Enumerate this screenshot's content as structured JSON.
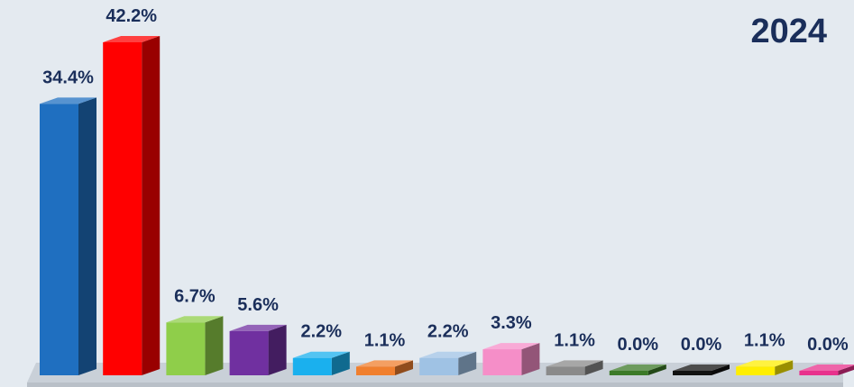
{
  "chart_data": {
    "type": "bar",
    "title": "2024",
    "xlabel": "",
    "ylabel": "",
    "ylim": [
      0,
      42.2
    ],
    "grid": false,
    "legend": "none",
    "values": [
      34.4,
      42.2,
      6.7,
      5.6,
      2.2,
      1.1,
      2.2,
      3.3,
      1.1,
      0.0,
      0.0,
      1.1,
      0.0
    ],
    "labels": [
      "34.4%",
      "42.2%",
      "6.7%",
      "5.6%",
      "2.2%",
      "1.1%",
      "2.2%",
      "3.3%",
      "1.1%",
      "0.0%",
      "0.0%",
      "1.1%",
      "0.0%"
    ],
    "colors": [
      "#1f6fc0",
      "#ff0000",
      "#8fce4a",
      "#7030a0",
      "#1ab0ee",
      "#f07f2e",
      "#9fc2e4",
      "#f58ec8",
      "#8a8a8a",
      "#3c7a28",
      "#111111",
      "#ffee00",
      "#e8318c"
    ]
  }
}
